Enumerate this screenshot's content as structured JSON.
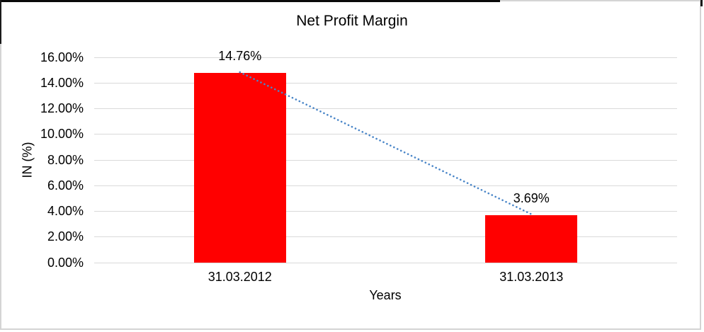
{
  "frame": {
    "background": "#ffffff",
    "border_color": "#d4d4d4",
    "accent_color": "#0a0a0a"
  },
  "chart_data": {
    "type": "bar",
    "title": "Net Profit Margin",
    "categories": [
      "31.03.2012",
      "31.03.2013"
    ],
    "series": [
      {
        "name": "Net Profit Margin",
        "values": [
          14.76,
          3.69
        ]
      }
    ],
    "value_labels": [
      "14.76%",
      "3.69%"
    ],
    "xlabel": "Years",
    "ylabel": "IN (%)",
    "ylim": [
      0,
      16
    ],
    "ytick_step": 2,
    "ytick_labels": [
      "0.00%",
      "2.00%",
      "4.00%",
      "6.00%",
      "8.00%",
      "10.00%",
      "12.00%",
      "14.00%",
      "16.00%"
    ],
    "bar_color": "#ff0000",
    "gridline_color": "#d9d9d9",
    "axis_text_color": "#000000",
    "trendline": {
      "type": "linear",
      "style": "dotted",
      "color": "#4a86c8"
    },
    "grid": true,
    "legend": false
  }
}
